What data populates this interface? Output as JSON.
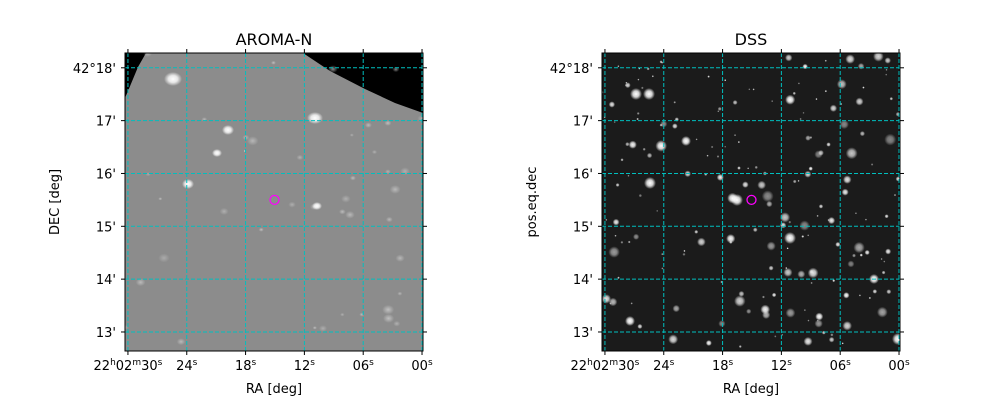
{
  "chart_data": [
    {
      "type": "scatter",
      "title": "AROMA-N",
      "xlabel": "RA [deg]",
      "ylabel": "DEC [deg]",
      "image_style": "grey",
      "xlim_seconds": [
        30.3,
        -0.1
      ],
      "ylim_arcmin": [
        12.64,
        18.28
      ],
      "grid": true,
      "grid_color": "#00bfbf",
      "x_ticks": [
        {
          "value": 30,
          "parts": [
            [
              "22",
              "h"
            ],
            [
              "02",
              "m"
            ],
            [
              "30",
              "s"
            ]
          ]
        },
        {
          "value": 24,
          "parts": [
            [
              "24",
              "s"
            ]
          ]
        },
        {
          "value": 18,
          "parts": [
            [
              "18",
              "s"
            ]
          ]
        },
        {
          "value": 12,
          "parts": [
            [
              "12",
              "s"
            ]
          ]
        },
        {
          "value": 6,
          "parts": [
            [
              "06",
              "s"
            ]
          ]
        },
        {
          "value": 0,
          "parts": [
            [
              "00",
              "s"
            ]
          ]
        }
      ],
      "y_ticks": [
        {
          "value": 18,
          "label": "42°18'"
        },
        {
          "value": 17,
          "label": "17'"
        },
        {
          "value": 16,
          "label": "16'"
        },
        {
          "value": 15,
          "label": "15'"
        },
        {
          "value": 14,
          "label": "14'"
        },
        {
          "value": 13,
          "label": "13'"
        }
      ],
      "marker": {
        "ra_seconds": 15.05,
        "dec_arcmin": 15.5,
        "color": "#ff00ff"
      }
    },
    {
      "type": "scatter",
      "title": "DSS",
      "xlabel": "RA [deg]",
      "ylabel": "pos.eq.dec",
      "image_style": "dark",
      "xlim_seconds": [
        30.3,
        -0.1
      ],
      "ylim_arcmin": [
        12.64,
        18.28
      ],
      "grid": true,
      "grid_color": "#00bfbf",
      "x_ticks": [
        {
          "value": 30,
          "parts": [
            [
              "22",
              "h"
            ],
            [
              "02",
              "m"
            ],
            [
              "30",
              "s"
            ]
          ]
        },
        {
          "value": 24,
          "parts": [
            [
              "24",
              "s"
            ]
          ]
        },
        {
          "value": 18,
          "parts": [
            [
              "18",
              "s"
            ]
          ]
        },
        {
          "value": 12,
          "parts": [
            [
              "12",
              "s"
            ]
          ]
        },
        {
          "value": 6,
          "parts": [
            [
              "06",
              "s"
            ]
          ]
        },
        {
          "value": 0,
          "parts": [
            [
              "00",
              "s"
            ]
          ]
        }
      ],
      "y_ticks": [
        {
          "value": 18,
          "label": "42°18'"
        },
        {
          "value": 17,
          "label": "17'"
        },
        {
          "value": 16,
          "label": "16'"
        },
        {
          "value": 15,
          "label": "15'"
        },
        {
          "value": 14,
          "label": "14'"
        },
        {
          "value": 13,
          "label": "13'"
        }
      ],
      "marker": {
        "ra_seconds": 15.05,
        "dec_arcmin": 15.5,
        "color": "#ff00ff"
      }
    }
  ]
}
